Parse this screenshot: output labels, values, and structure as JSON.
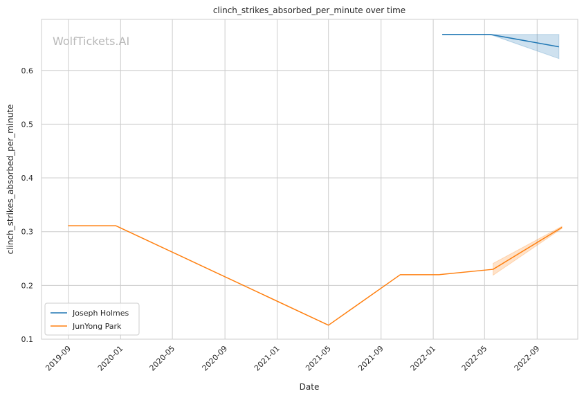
{
  "chart_data": {
    "type": "line",
    "title": "clinch_strikes_absorbed_per_minute over time",
    "xlabel": "Date",
    "ylabel": "clinch_strikes_absorbed_per_minute",
    "watermark": "WolfTickets.AI",
    "xlim": [
      "2019-06-30",
      "2022-12-05"
    ],
    "ylim": [
      0.1,
      0.695
    ],
    "x_ticks": [
      "2019-09-01",
      "2020-01-01",
      "2020-05-01",
      "2020-09-01",
      "2021-01-01",
      "2021-05-01",
      "2021-09-01",
      "2022-01-01",
      "2022-05-01",
      "2022-09-01"
    ],
    "x_tick_labels": [
      "2019-09",
      "2020-01",
      "2020-05",
      "2020-09",
      "2021-01",
      "2021-05",
      "2021-09",
      "2022-01",
      "2022-05",
      "2022-09"
    ],
    "y_ticks": [
      0.1,
      0.2,
      0.3,
      0.4,
      0.5,
      0.6
    ],
    "y_tick_labels": [
      "0.1",
      "0.2",
      "0.3",
      "0.4",
      "0.5",
      "0.6"
    ],
    "grid": true,
    "legend_position": "lower-left",
    "series": [
      {
        "name": "Joseph Holmes",
        "color": "#1f77b4",
        "x": [
          "2022-01-22",
          "2022-05-14",
          "2022-10-22"
        ],
        "y": [
          0.667,
          0.667,
          0.644
        ],
        "ci_x": [
          "2022-05-14",
          "2022-10-22"
        ],
        "ci_low": [
          0.667,
          0.622
        ],
        "ci_high": [
          0.667,
          0.667
        ]
      },
      {
        "name": "JunYong Park",
        "color": "#ff7f0e",
        "x": [
          "2019-08-31",
          "2019-12-21",
          "2021-05-01",
          "2021-10-16",
          "2022-01-15",
          "2022-05-21",
          "2022-10-29"
        ],
        "y": [
          0.311,
          0.311,
          0.126,
          0.22,
          0.22,
          0.23,
          0.308
        ],
        "ci_x": [
          "2022-05-21",
          "2022-10-29"
        ],
        "ci_low": [
          0.219,
          0.306
        ],
        "ci_high": [
          0.241,
          0.31
        ]
      }
    ]
  }
}
